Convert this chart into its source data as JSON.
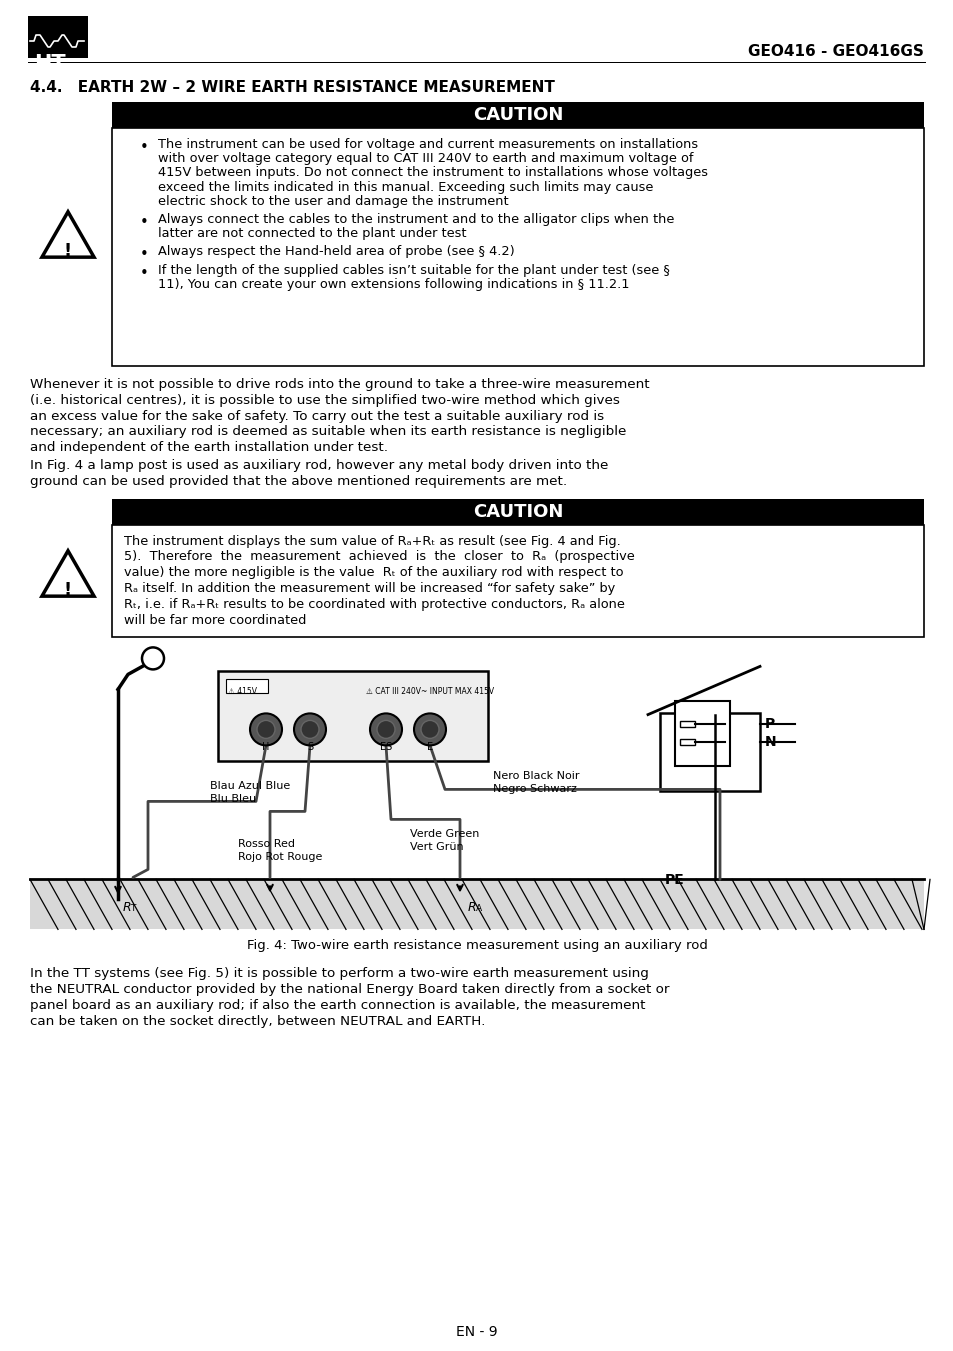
{
  "header_model": "GEO416 - GEO416GS",
  "section_title": "4.4. EARTH 2W – 2 WIRE EARTH RESISTANCE MEASUREMENT",
  "caution_label": "CAUTION",
  "caution1_bullets": [
    "The instrument can be used for voltage and current measurements on installations with over voltage category equal to CAT III 240V to earth and maximum voltage of  415V between inputs. Do not connect the instrument to installations whose voltages exceed the limits indicated in this manual. Exceeding such limits may cause electric shock to the user and damage the instrument",
    "Always connect the cables to the instrument and to the alligator clips when the latter are not connected to the plant under test",
    "Always respect the Hand-held area of probe (see § 4.2)",
    "If the length of the supplied cables isn’t suitable for the plant under test (see § 11), You can create your own extensions following indications in § 11.2.1"
  ],
  "para1": "Whenever it is not possible to drive rods into the ground to take a three-wire measurement (i.e. historical centres), it is possible to use the simplified two-wire method which gives an excess  value  for  the  sake  of  safety.  To  carry  out  the  test  a  suitable  auxiliary  rod  is necessary; an auxiliary rod is deemed as suitable when its earth resistance is negligible and independent of the earth installation under test.",
  "para2": "In  Fig. 4 a lamp post is used   as auxiliary rod, however any metal body driven into the ground can be used provided that the above mentioned requirements are met.",
  "caution2_lines": [
    "The instrument displays the sum value of Rₐ+Rₜ as result (see Fig. 4 and Fig.",
    "5).  Therefore  the  measurement  achieved  is  the  closer  to  Rₐ  (prospective",
    "value) the more negligible is the value  Rₜ of the auxiliary rod with respect to",
    "Rₐ itself. In addition the measurement will be increased “for safety sake” by",
    "Rₜ, i.e. if Rₐ+Rₜ results to be coordinated with protective conductors, Rₐ alone",
    "will be far more coordinated"
  ],
  "fig_caption": "Fig. 4: Two-wire earth resistance measurement using an auxiliary rod",
  "para3": "In  the  TT  systems  (see  Fig.  5)  it  is  possible  to  perform  a  two-wire  earth  measurement using the NEUTRAL conductor provided by the national Energy Board taken directly from a socket or panel board as an auxiliary rod; if also the earth connection is available, the measurement can be taken on the socket directly, between NEUTRAL and EARTH.",
  "footer": "EN - 9"
}
